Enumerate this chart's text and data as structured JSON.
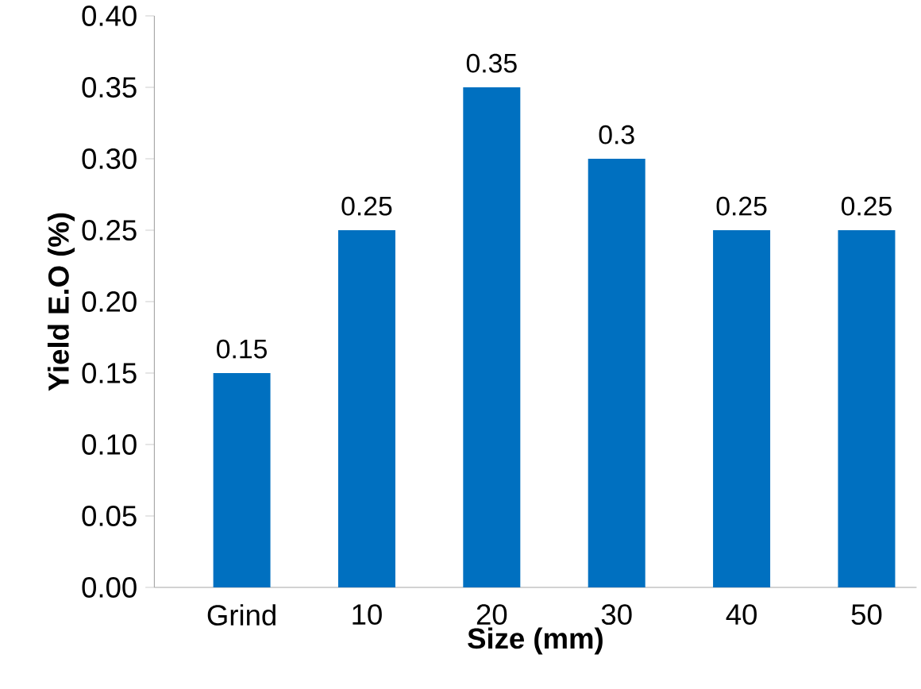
{
  "chart_data": {
    "type": "bar",
    "xlabel": "Size (mm)",
    "ylabel": "Yield E.O (%)",
    "categories": [
      "Grind",
      "10",
      "20",
      "30",
      "40",
      "50"
    ],
    "values": [
      0.15,
      0.25,
      0.35,
      0.3,
      0.25,
      0.25
    ],
    "color": "#0070c0",
    "data_labels": true,
    "ylim": [
      0,
      0.4
    ],
    "yticks": [
      {
        "value": 0,
        "label": "0.00"
      },
      {
        "value": 0.05,
        "label": "0.05"
      },
      {
        "value": 0.1,
        "label": "0.10"
      },
      {
        "value": 0.15,
        "label": "0.15"
      },
      {
        "value": 0.2,
        "label": "0.20"
      },
      {
        "value": 0.25,
        "label": "0.25"
      },
      {
        "value": 0.3,
        "label": "0.30"
      },
      {
        "value": 0.35,
        "label": "0.35"
      },
      {
        "value": 0.4,
        "label": "0.40"
      }
    ]
  }
}
